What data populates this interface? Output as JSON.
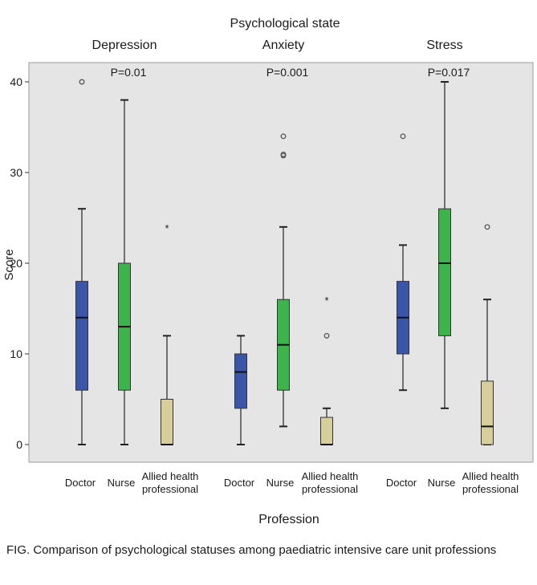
{
  "chart_data": {
    "type": "box",
    "title": "Psychological state",
    "xlabel": "Profession",
    "ylabel": "Score",
    "ylim": [
      -2,
      42
    ],
    "yticks": [
      0,
      10,
      20,
      30,
      40
    ],
    "grid": false,
    "colors": {
      "Doctor": "#3a56a8",
      "Nurse": "#3cb44b",
      "Allied health professional": "#d6cf9c",
      "panel_background": "#e5e5e5"
    },
    "groups": [
      {
        "name": "Depression",
        "p_value": "P=0.01",
        "boxes": [
          {
            "category": "Doctor",
            "min": 0,
            "q1": 6,
            "median": 14,
            "q3": 18,
            "max": 26,
            "outliers": [
              {
                "value": 40,
                "marker": "circle"
              }
            ]
          },
          {
            "category": "Nurse",
            "min": 0,
            "q1": 6,
            "median": 13,
            "q3": 20,
            "max": 38,
            "outliers": []
          },
          {
            "category": "Allied health professional",
            "min": 0,
            "q1": 0,
            "median": 0,
            "q3": 5,
            "max": 12,
            "outliers": [
              {
                "value": 24,
                "marker": "star"
              }
            ]
          }
        ]
      },
      {
        "name": "Anxiety",
        "p_value": "P=0.001",
        "boxes": [
          {
            "category": "Doctor",
            "min": 0,
            "q1": 4,
            "median": 8,
            "q3": 10,
            "max": 12,
            "outliers": []
          },
          {
            "category": "Nurse",
            "min": 2,
            "q1": 6,
            "median": 11,
            "q3": 16,
            "max": 24,
            "outliers": [
              {
                "value": 32,
                "marker": "circle"
              },
              {
                "value": 32,
                "marker": "circle"
              },
              {
                "value": 34,
                "marker": "circle"
              }
            ]
          },
          {
            "category": "Allied health professional",
            "min": 0,
            "q1": 0,
            "median": 0,
            "q3": 3,
            "max": 4,
            "outliers": [
              {
                "value": 12,
                "marker": "circle"
              },
              {
                "value": 16,
                "marker": "star"
              }
            ]
          }
        ]
      },
      {
        "name": "Stress",
        "p_value": "P=0.017",
        "boxes": [
          {
            "category": "Doctor",
            "min": 6,
            "q1": 10,
            "median": 14,
            "q3": 18,
            "max": 22,
            "outliers": [
              {
                "value": 34,
                "marker": "circle"
              }
            ]
          },
          {
            "category": "Nurse",
            "min": 4,
            "q1": 12,
            "median": 20,
            "q3": 26,
            "max": 40,
            "outliers": []
          },
          {
            "category": "Allied health professional",
            "min": 0,
            "q1": 0,
            "median": 2,
            "q3": 7,
            "max": 16,
            "outliers": [
              {
                "value": 24,
                "marker": "circle"
              }
            ]
          }
        ]
      }
    ],
    "category_labels": [
      {
        "category": "Doctor",
        "lines": [
          "Doctor"
        ]
      },
      {
        "category": "Nurse",
        "lines": [
          "Nurse"
        ]
      },
      {
        "category": "Allied health professional",
        "lines": [
          "Allied health",
          "professional"
        ]
      }
    ]
  },
  "caption": "FIG.  Comparison of psychological statuses among paediatric intensive care unit professions"
}
